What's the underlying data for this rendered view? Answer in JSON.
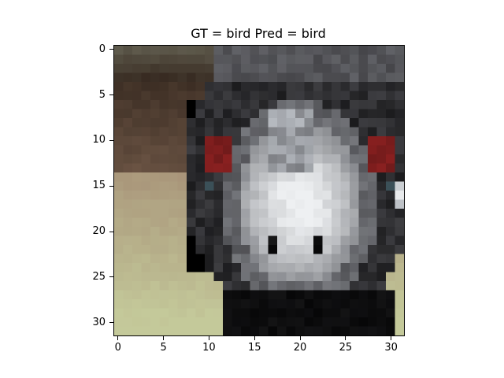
{
  "figure": {
    "title": "GT = bird Pred = bird"
  },
  "image": {
    "description_icon": "bird-pixel-image",
    "grid_size": 32,
    "palette": {
      "dark": "#1b1b1d",
      "black": "#070708",
      "gray_dark": "#46464a",
      "gray_mid": "#7b7d82",
      "gray_light": "#b5b9bf",
      "white": "#eef0f2",
      "brown_dark": "#35281f",
      "brown": "#6b5444",
      "tan": "#a89479",
      "olive": "#9fa27a",
      "green_light": "#c4c99a",
      "red": "#8a2020",
      "teal": "#3b5058"
    }
  },
  "axes": {
    "x_ticks": [
      "0",
      "5",
      "10",
      "15",
      "20",
      "25",
      "30"
    ],
    "y_ticks": [
      "0",
      "5",
      "10",
      "15",
      "20",
      "25",
      "30"
    ],
    "xlim": [
      -0.5,
      31.5
    ],
    "ylim": [
      31.5,
      -0.5
    ]
  }
}
